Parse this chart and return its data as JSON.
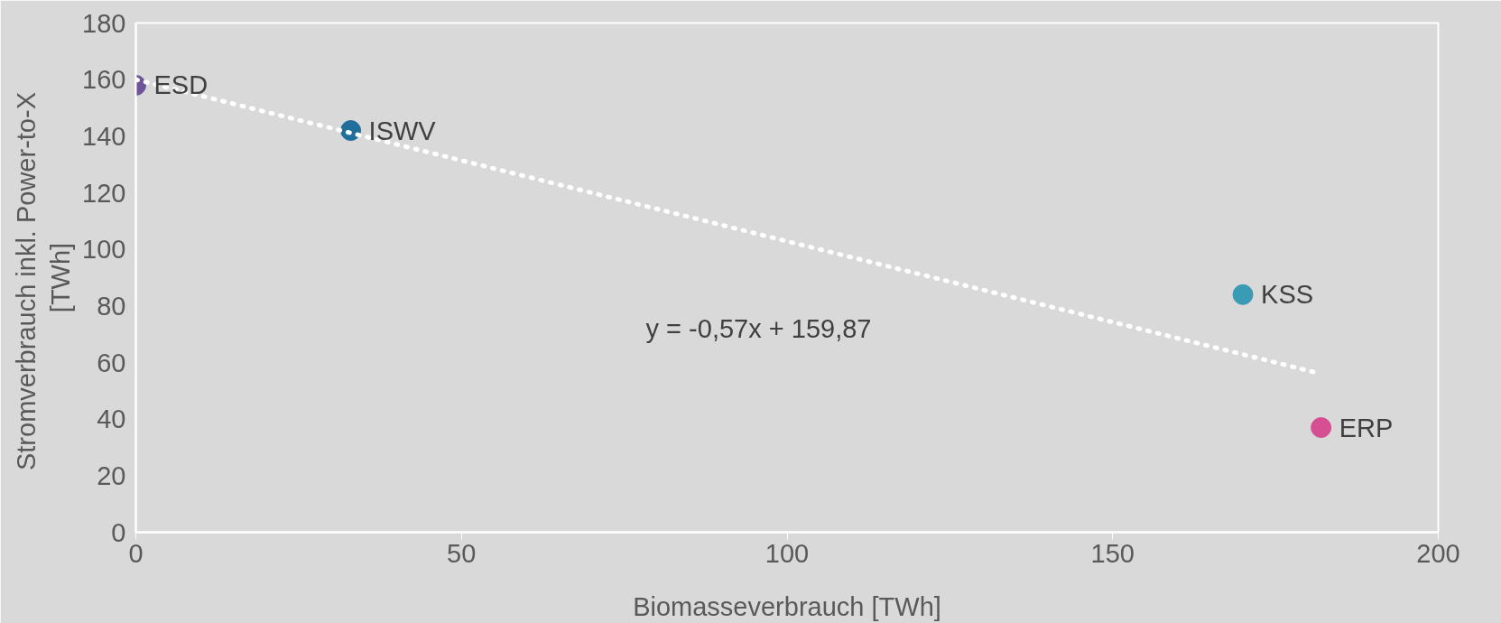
{
  "chart_data": {
    "type": "scatter",
    "xlabel": "Biomasseverbrauch [TWh]",
    "ylabel": "Stromverbrauch  inkl. Power-to-X\n[TWh]",
    "xlim": [
      0,
      200
    ],
    "xticks": [
      0,
      50,
      100,
      150,
      200
    ],
    "ylim": [
      0,
      180
    ],
    "yticks": [
      0,
      20,
      40,
      60,
      80,
      100,
      120,
      140,
      160,
      180
    ],
    "grid": false,
    "legend": false,
    "series": [
      {
        "name": "ESD",
        "color": "#6f5597",
        "marker": "circle",
        "x": [
          0
        ],
        "values": [
          158
        ]
      },
      {
        "name": "ISWV",
        "color": "#1f6e9c",
        "marker": "circle",
        "x": [
          33
        ],
        "values": [
          142
        ]
      },
      {
        "name": "KSS",
        "color": "#3a9bb5",
        "marker": "circle",
        "x": [
          170
        ],
        "values": [
          84
        ]
      },
      {
        "name": "ERP",
        "color": "#d64f93",
        "marker": "circle",
        "x": [
          182
        ],
        "values": [
          37
        ]
      },
      {
        "type": "line",
        "color": "#ffffff",
        "line_style": "dotted",
        "marker": "none",
        "x": [
          0,
          182
        ],
        "values": [
          160,
          56
        ]
      }
    ],
    "annotations": [
      "y = -0,57x + 159,87"
    ]
  }
}
